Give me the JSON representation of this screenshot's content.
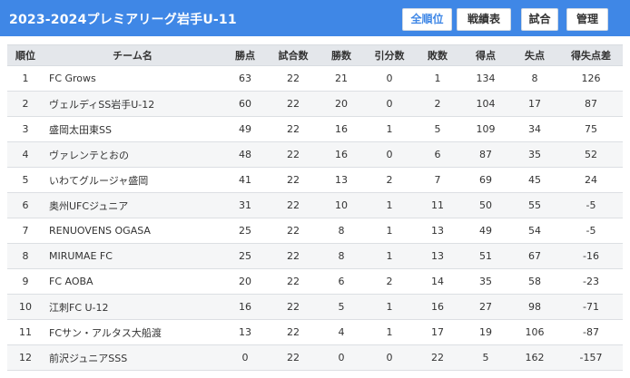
{
  "header": {
    "title": "2023-2024プレミアリーグ岩手U-11",
    "buttons": [
      "全順位",
      "戦績表",
      "試合",
      "管理"
    ]
  },
  "table": {
    "columns": [
      "順位",
      "チーム名",
      "勝点",
      "試合数",
      "勝数",
      "引分数",
      "敗数",
      "得点",
      "失点",
      "得失点差"
    ],
    "rows": [
      [
        "1",
        "FC Grows",
        "63",
        "22",
        "21",
        "0",
        "1",
        "134",
        "8",
        "126"
      ],
      [
        "2",
        "ヴェルディSS岩手U-12",
        "60",
        "22",
        "20",
        "0",
        "2",
        "104",
        "17",
        "87"
      ],
      [
        "3",
        "盛岡太田東SS",
        "49",
        "22",
        "16",
        "1",
        "5",
        "109",
        "34",
        "75"
      ],
      [
        "4",
        "ヴァレンテとおの",
        "48",
        "22",
        "16",
        "0",
        "6",
        "87",
        "35",
        "52"
      ],
      [
        "5",
        "いわてグルージャ盛岡",
        "41",
        "22",
        "13",
        "2",
        "7",
        "69",
        "45",
        "24"
      ],
      [
        "6",
        "奥州UFCジュニア",
        "31",
        "22",
        "10",
        "1",
        "11",
        "50",
        "55",
        "-5"
      ],
      [
        "7",
        "RENUOVENS OGASA",
        "25",
        "22",
        "8",
        "1",
        "13",
        "49",
        "54",
        "-5"
      ],
      [
        "8",
        "MIRUMAE FC",
        "25",
        "22",
        "8",
        "1",
        "13",
        "51",
        "67",
        "-16"
      ],
      [
        "9",
        "FC AOBA",
        "20",
        "22",
        "6",
        "2",
        "14",
        "35",
        "58",
        "-23"
      ],
      [
        "10",
        "江刺FC U-12",
        "16",
        "22",
        "5",
        "1",
        "16",
        "27",
        "98",
        "-71"
      ],
      [
        "11",
        "FCサン・アルタス大船渡",
        "13",
        "22",
        "4",
        "1",
        "17",
        "19",
        "106",
        "-87"
      ],
      [
        "12",
        "前沢ジュニアSSS",
        "0",
        "22",
        "0",
        "0",
        "22",
        "5",
        "162",
        "-157"
      ]
    ]
  }
}
